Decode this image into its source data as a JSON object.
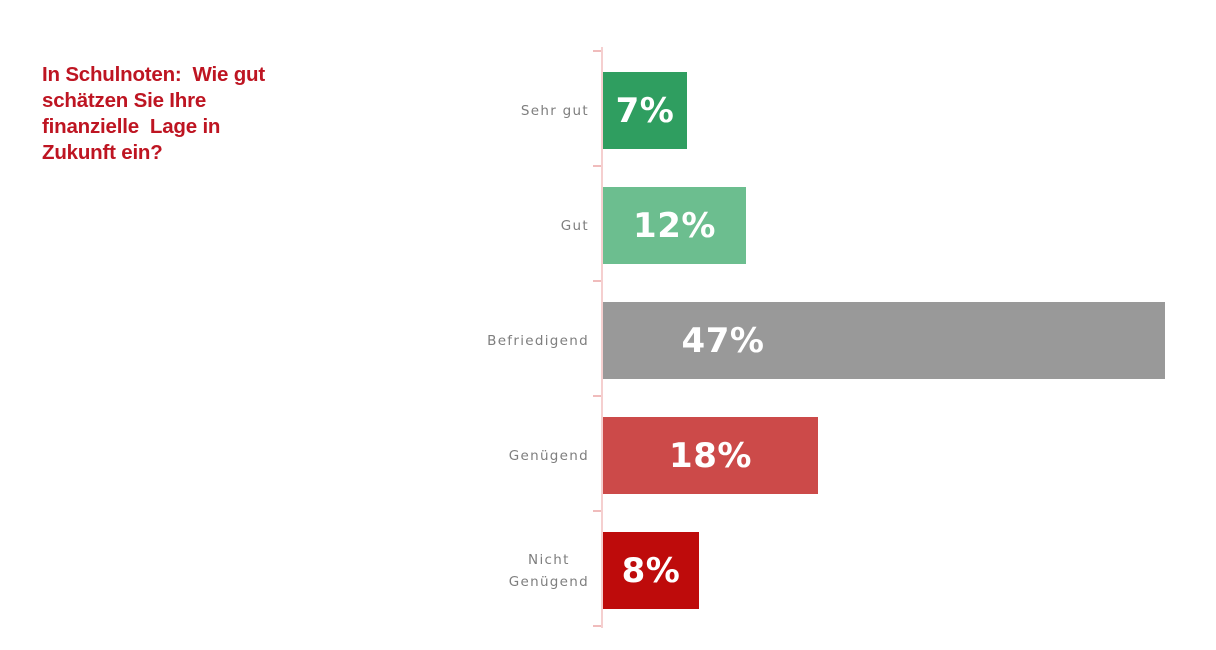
{
  "title": {
    "text": "In Schulnoten:  Wie gut\nschätzen Sie Ihre\nfinanzielle  Lage in\nZukunft ein?",
    "color": "#BE1522"
  },
  "chart_data": {
    "type": "bar",
    "orientation": "horizontal",
    "title": "In Schulnoten: Wie gut schätzen Sie Ihre finanzielle Lage in Zukunft ein?",
    "categories": [
      "Sehr gut",
      "Gut",
      "Befriedigend",
      "Genügend",
      "Nicht\nGenügend"
    ],
    "values": [
      7,
      12,
      47,
      18,
      8
    ],
    "value_labels": [
      "7%",
      "12%",
      "47%",
      "18%",
      "8%"
    ],
    "bar_colors": [
      "#2F9E60",
      "#6CBE8F",
      "#999999",
      "#CC4A49",
      "#BE0B0B"
    ],
    "xlabel": "",
    "ylabel": "",
    "xlim": [
      0,
      50
    ],
    "grid": false,
    "legend": false,
    "axis_color": "#F5CFCF",
    "tick_color": "#F0BCBC",
    "category_label_color": "#7E7E7E",
    "value_label_color": "#FFFFFF"
  }
}
